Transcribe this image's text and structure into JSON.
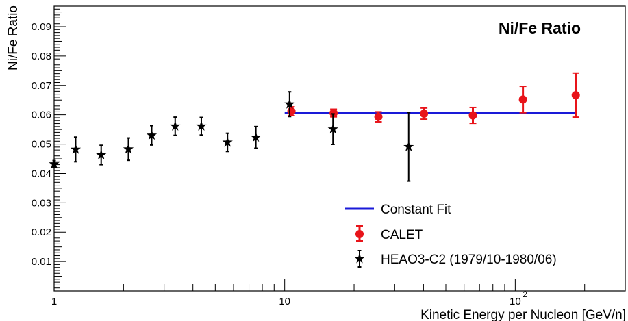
{
  "chart_data": {
    "type": "scatter",
    "title": "Ni/Fe Ratio",
    "xlabel": "Kinetic Energy per Nucleon [GeV/n]",
    "ylabel": "Ni/Fe Ratio",
    "xscale": "log",
    "xlim": [
      1,
      300
    ],
    "ylim": [
      0,
      0.097
    ],
    "x_ticks": [
      {
        "value": 1,
        "label": "1"
      },
      {
        "value": 10,
        "label": "10"
      },
      {
        "value": 100,
        "label": "10",
        "exponent": "2"
      }
    ],
    "y_ticks": [
      {
        "value": 0.01,
        "label": "0.01"
      },
      {
        "value": 0.02,
        "label": "0.02"
      },
      {
        "value": 0.03,
        "label": "0.03"
      },
      {
        "value": 0.04,
        "label": "0.04"
      },
      {
        "value": 0.05,
        "label": "0.05"
      },
      {
        "value": 0.06,
        "label": "0.06"
      },
      {
        "value": 0.07,
        "label": "0.07"
      },
      {
        "value": 0.08,
        "label": "0.08"
      },
      {
        "value": 0.09,
        "label": "0.09"
      }
    ],
    "grid": false,
    "legend_position": "bottom-right",
    "series": [
      {
        "name": "Constant Fit",
        "kind": "line",
        "color": "#1a1ad8",
        "x": [
          10,
          185
        ],
        "y": [
          0.0605,
          0.0605
        ]
      },
      {
        "name": "CALET",
        "kind": "points",
        "marker": "circle",
        "color": "#e8141a",
        "x": [
          10.7,
          16.3,
          25.5,
          40.2,
          65.5,
          108,
          183
        ],
        "y": [
          0.0612,
          0.0606,
          0.0593,
          0.0604,
          0.0598,
          0.0652,
          0.0667
        ],
        "err": [
          0.0015,
          0.0013,
          0.0017,
          0.0019,
          0.0027,
          0.0045,
          0.0075
        ]
      },
      {
        "name": "HEAO3-C2 (1979/10-1980/06)",
        "kind": "points",
        "marker": "star",
        "color": "#000000",
        "x": [
          1.0,
          1.24,
          1.6,
          2.1,
          2.65,
          3.35,
          4.35,
          5.65,
          7.5,
          10.5,
          16.2,
          34.5
        ],
        "y": [
          0.0432,
          0.0482,
          0.0463,
          0.0483,
          0.053,
          0.0561,
          0.0561,
          0.0506,
          0.0523,
          0.0636,
          0.0551,
          0.0491
        ],
        "err": [
          0.0012,
          0.0042,
          0.0033,
          0.0038,
          0.0033,
          0.0031,
          0.003,
          0.0031,
          0.0037,
          0.0042,
          0.0052,
          0.0117
        ]
      }
    ]
  }
}
